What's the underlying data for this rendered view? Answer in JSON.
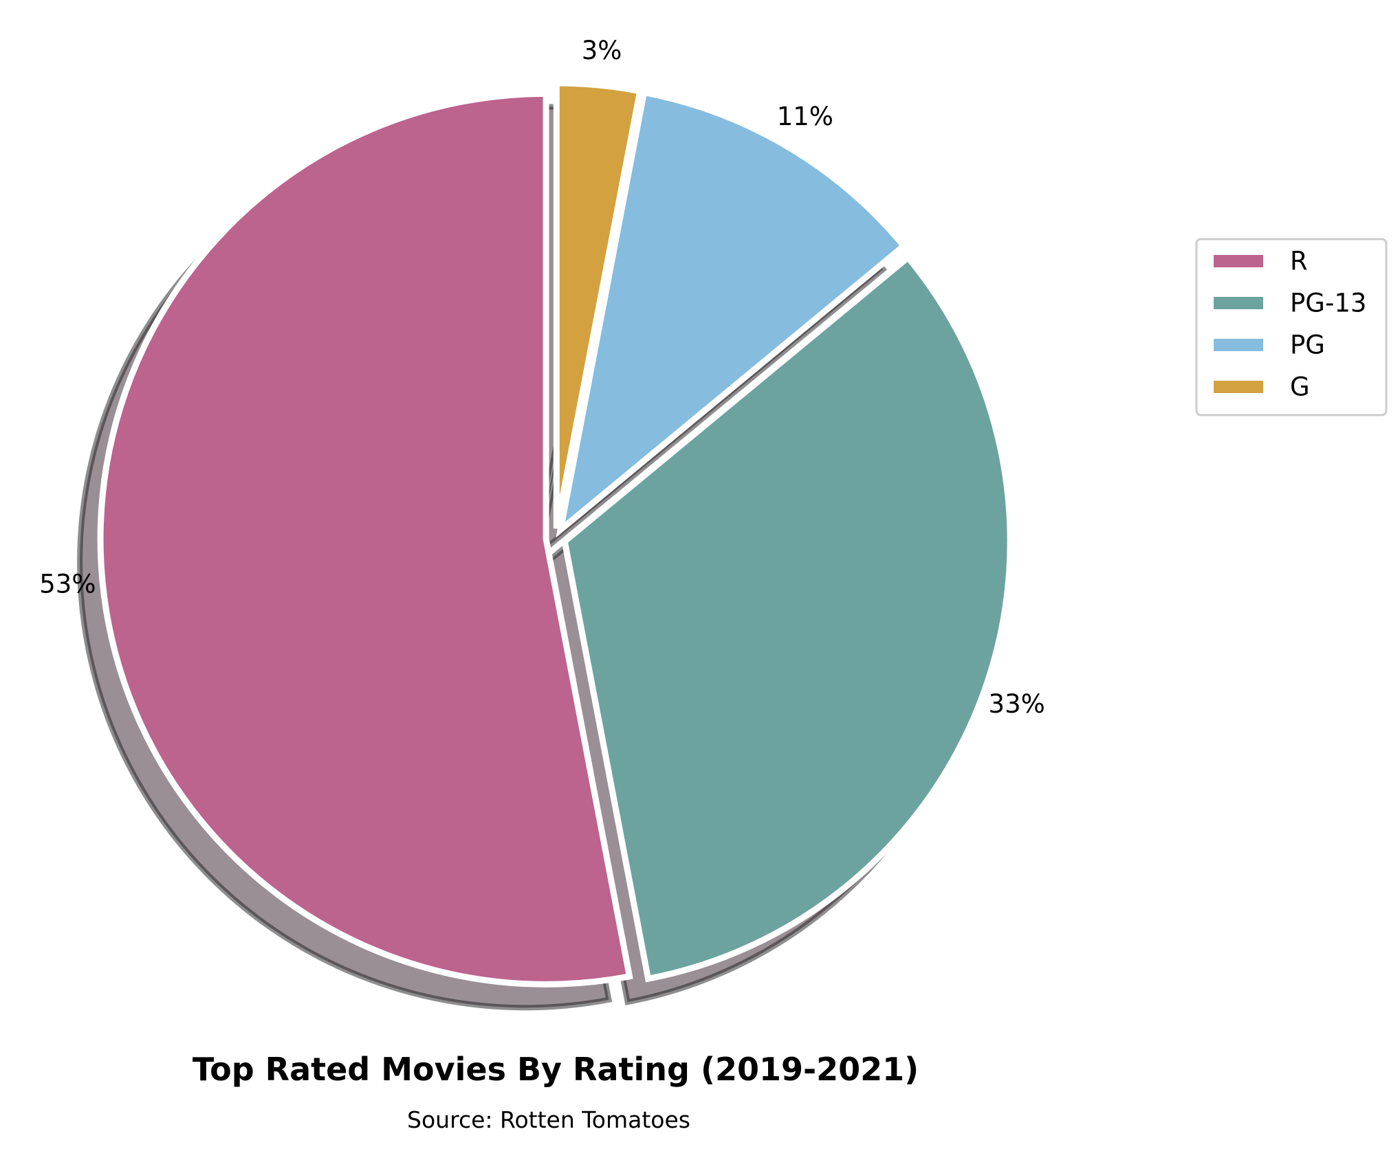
{
  "chart_data": {
    "type": "pie",
    "title": "Top Rated Movies By Rating (2019-2021)",
    "subtitle": "Source: Rotten Tomatoes",
    "categories": [
      "R",
      "PG-13",
      "PG",
      "G"
    ],
    "values": [
      53,
      33,
      11,
      3
    ],
    "value_labels": [
      "53%",
      "33%",
      "11%",
      "3%"
    ],
    "colors": [
      "#bc638e",
      "#6ca39f",
      "#86bcde",
      "#d3a13f"
    ],
    "start_angle_deg": 90,
    "direction": "counterclockwise",
    "shadow": true,
    "legend": {
      "placement": "right",
      "entries": [
        "R",
        "PG-13",
        "PG",
        "G"
      ]
    }
  }
}
